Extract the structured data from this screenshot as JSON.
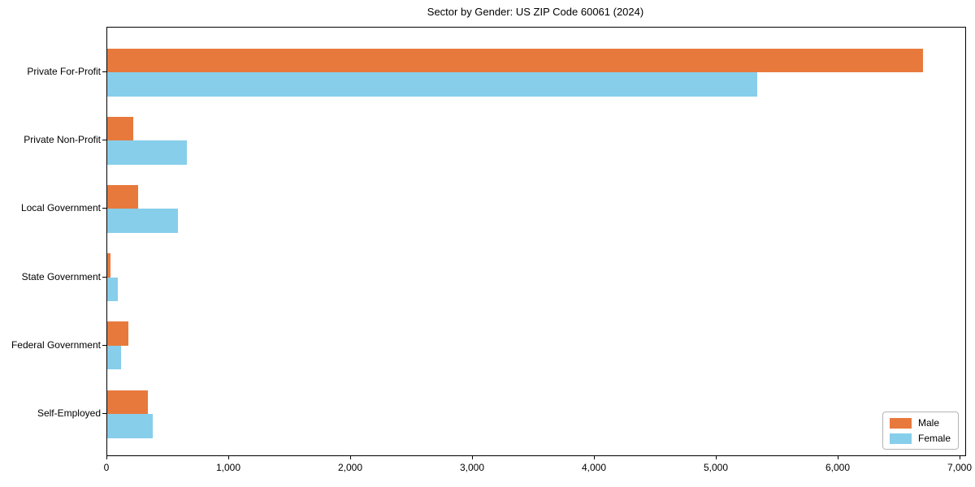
{
  "chart_data": {
    "type": "bar",
    "orientation": "horizontal",
    "title": "Sector by Gender: US ZIP Code 60061 (2024)",
    "xlabel": "",
    "ylabel": "",
    "categories": [
      "Private For-Profit",
      "Private Non-Profit",
      "Local Government",
      "State Government",
      "Federal Government",
      "Self-Employed"
    ],
    "series": [
      {
        "name": "Male",
        "color": "#E8793C",
        "values": [
          6690,
          215,
          250,
          25,
          175,
          335
        ]
      },
      {
        "name": "Female",
        "color": "#87CEEB",
        "values": [
          5330,
          650,
          580,
          85,
          115,
          375
        ]
      }
    ],
    "xlim": [
      0,
      7040
    ],
    "xticks": [
      0,
      1000,
      2000,
      3000,
      4000,
      5000,
      6000,
      7000
    ],
    "xtick_labels": [
      "0",
      "1,000",
      "2,000",
      "3,000",
      "4,000",
      "5,000",
      "6,000",
      "7,000"
    ],
    "grid": false,
    "background_color": "#ffffff",
    "spine_color": "#000000",
    "legend": {
      "position": "lower right",
      "entries": [
        "Male",
        "Female"
      ]
    }
  }
}
